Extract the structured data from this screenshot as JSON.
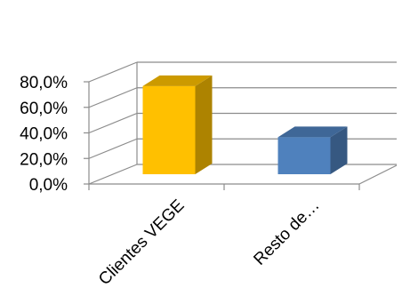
{
  "chart_data": {
    "type": "bar",
    "three_d": true,
    "categories": [
      "Clientes VEGE",
      "Resto de…"
    ],
    "values": [
      69.0,
      29.0
    ],
    "y_tick_labels": [
      "0,0%",
      "20,0%",
      "40,0%",
      "60,0%",
      "80,0%"
    ],
    "y_ticks": [
      0,
      20,
      40,
      60,
      80
    ],
    "ylim": [
      0,
      80
    ],
    "grid": true,
    "legend": "none",
    "colors": {
      "series": [
        "#FFC000",
        "#4F81BD"
      ],
      "gridline": "#8C8C8C",
      "axis": "#8C8C8C"
    }
  }
}
